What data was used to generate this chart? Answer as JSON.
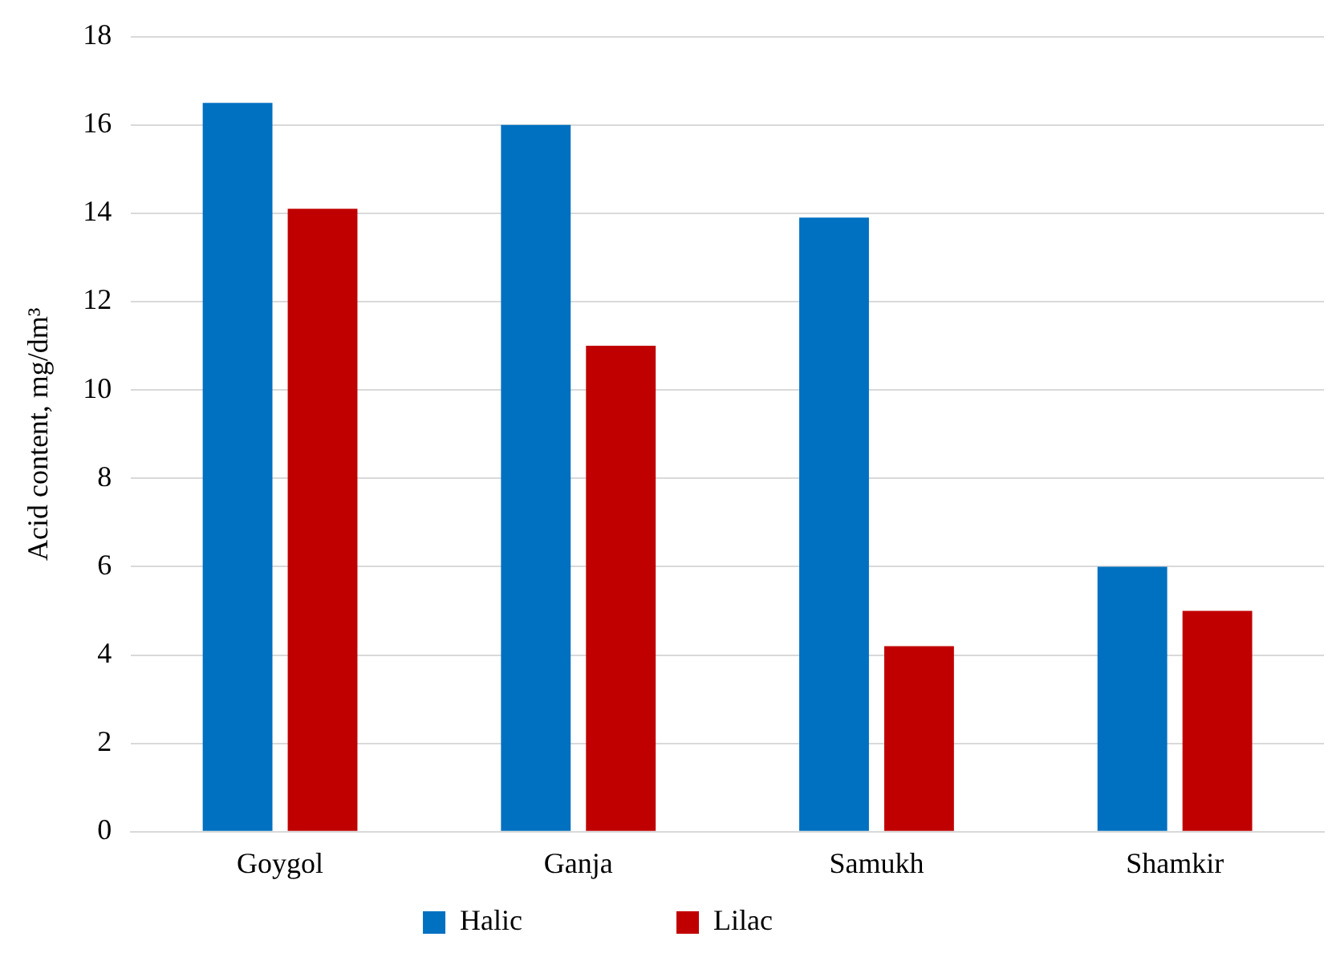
{
  "chart_data": {
    "type": "bar",
    "ylabel": "Acid content, mg/dm³",
    "categories": [
      "Goygol",
      "Ganja",
      "Samukh",
      "Shamkir"
    ],
    "series": [
      {
        "name": "Halic",
        "color": "#0070c0",
        "values": [
          16.5,
          16,
          13.9,
          6
        ]
      },
      {
        "name": "Lilac",
        "color": "#c00000",
        "values": [
          14.1,
          11,
          4.2,
          5
        ]
      }
    ],
    "ylim": [
      0,
      18
    ],
    "yticks": [
      0,
      2,
      4,
      6,
      8,
      10,
      12,
      14,
      16,
      18
    ],
    "grid": "y",
    "legend": "bottom"
  }
}
